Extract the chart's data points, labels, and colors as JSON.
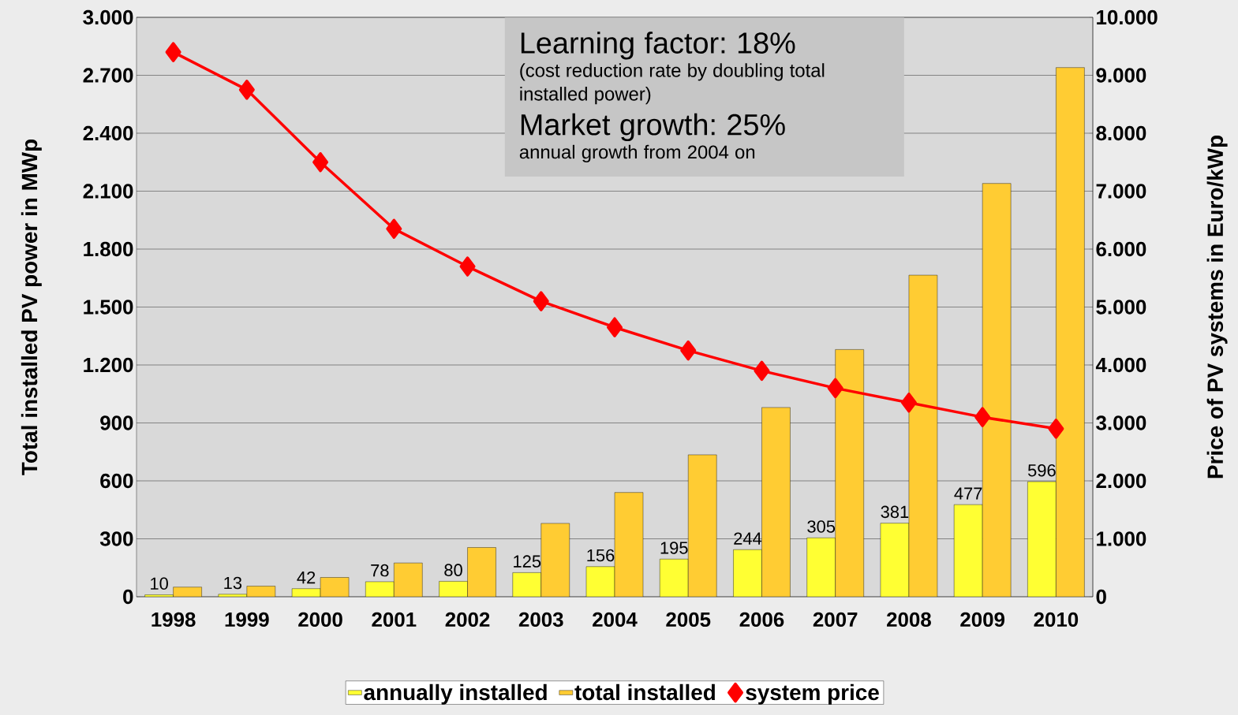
{
  "chart_data": {
    "type": "bar",
    "ylabel": "Total installed PV power in MWp",
    "y2label": "Price of PV systems in Euro/kWp",
    "categories": [
      "1998",
      "1999",
      "2000",
      "2001",
      "2002",
      "2003",
      "2004",
      "2005",
      "2006",
      "2007",
      "2008",
      "2009",
      "2010"
    ],
    "series": [
      {
        "name": "annually installed",
        "color": "#ffff33",
        "values": [
          10,
          13,
          42,
          78,
          80,
          125,
          156,
          195,
          244,
          305,
          381,
          477,
          596
        ],
        "value_labels": [
          "10",
          "13",
          "42",
          "78",
          "80",
          "125",
          "156",
          "195",
          "244",
          "305",
          "381",
          "477",
          "596"
        ]
      },
      {
        "name": "total installed",
        "color": "#ffcc33",
        "values": [
          50,
          55,
          100,
          175,
          255,
          380,
          540,
          735,
          980,
          1280,
          1665,
          2140,
          2740
        ]
      },
      {
        "name": "system price",
        "type": "line",
        "axis": "y2",
        "color": "#ff0000",
        "marker": "diamond",
        "values": [
          9400,
          8750,
          7500,
          6350,
          5700,
          5100,
          4650,
          4250,
          3900,
          3600,
          3350,
          3100,
          2900
        ]
      }
    ],
    "ylim": [
      0,
      3000
    ],
    "yticks": [
      0,
      {
        "value": 300,
        "label": "300"
      },
      {
        "value": 600,
        "label": "600"
      },
      {
        "value": 900,
        "label": "900"
      },
      {
        "value": 1200,
        "label": "1.200"
      },
      {
        "value": 1500,
        "label": "1.500"
      },
      {
        "value": 1800,
        "label": "1.800"
      },
      {
        "value": 2100,
        "label": "2.100"
      },
      {
        "value": 2400,
        "label": "2.400"
      },
      {
        "value": 2700,
        "label": "2.700"
      },
      {
        "value": 3000,
        "label": "3.000"
      }
    ],
    "y2lim": [
      0,
      10000
    ],
    "y2ticks": [
      0,
      {
        "value": 1000,
        "label": "1.000"
      },
      {
        "value": 2000,
        "label": "2.000"
      },
      {
        "value": 3000,
        "label": "3.000"
      },
      {
        "value": 4000,
        "label": "4.000"
      },
      {
        "value": 5000,
        "label": "5.000"
      },
      {
        "value": 6000,
        "label": "6.000"
      },
      {
        "value": 7000,
        "label": "7.000"
      },
      {
        "value": 8000,
        "label": "8.000"
      },
      {
        "value": 9000,
        "label": "9.000"
      },
      {
        "value": 10000,
        "label": "10.000"
      }
    ],
    "grid": "y",
    "legend": "bottom",
    "annotations": [
      "Learning factor: 18%",
      "(cost reduction rate by doubling total installed power)",
      "Market growth: 25%",
      "annual growth from 2004 on"
    ]
  }
}
